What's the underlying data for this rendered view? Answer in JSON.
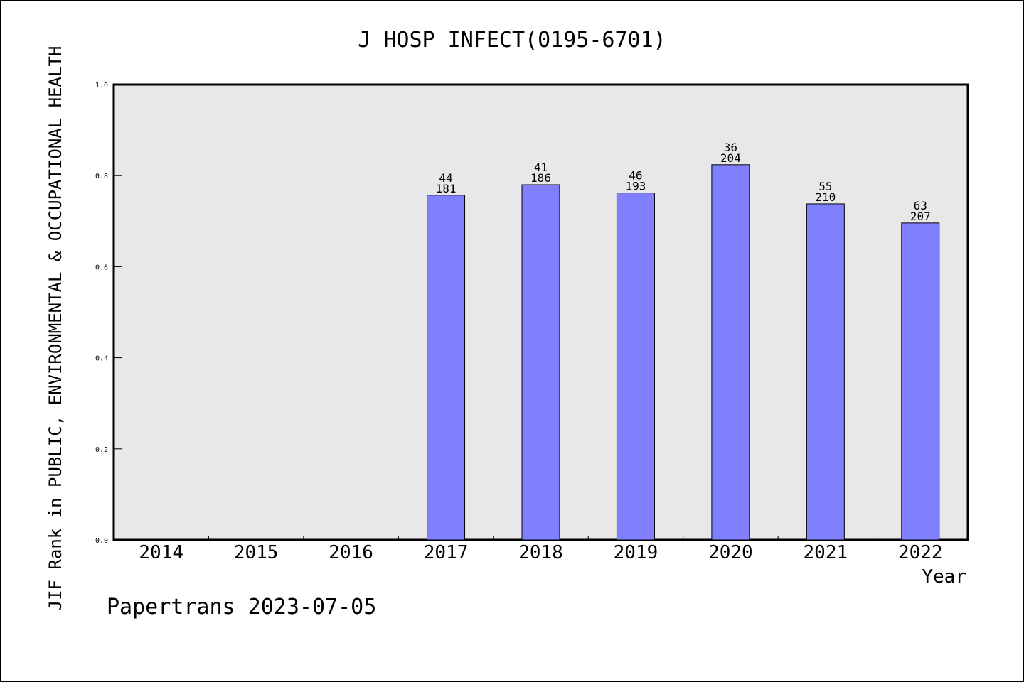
{
  "chart_data": {
    "type": "bar",
    "title": "J HOSP INFECT(0195-6701)",
    "xlabel": "Year",
    "ylabel": "JIF Rank in PUBLIC, ENVIRONMENTAL & OCCUPATIONAL HEALTH",
    "categories": [
      "2014",
      "2015",
      "2016",
      "2017",
      "2018",
      "2019",
      "2020",
      "2021",
      "2022"
    ],
    "values": [
      null,
      null,
      null,
      0.757,
      0.78,
      0.762,
      0.824,
      0.738,
      0.696
    ],
    "rank": [
      null,
      null,
      null,
      "44",
      "41",
      "46",
      "36",
      "55",
      "63"
    ],
    "total": [
      null,
      null,
      null,
      "181",
      "186",
      "193",
      "204",
      "210",
      "207"
    ],
    "ylim": [
      0,
      1.0
    ],
    "yticks": [
      "0.0",
      "0.2",
      "0.4",
      "0.6",
      "0.8",
      "1.0"
    ],
    "grid": false,
    "colors": {
      "bar": "#8080ff",
      "plot_bg": "#e8e8e8",
      "axis": "#000000"
    }
  },
  "footer": {
    "credit": "Papertrans 2023-07-05"
  }
}
